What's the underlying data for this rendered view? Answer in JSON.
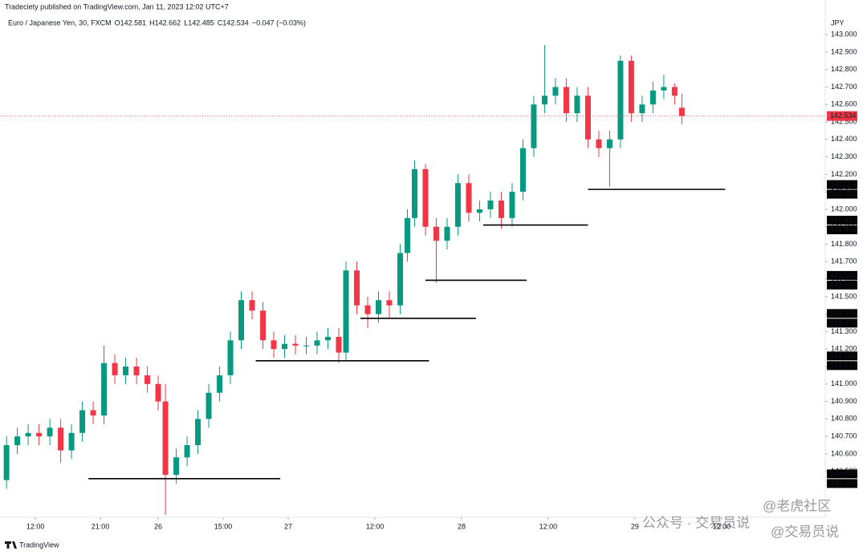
{
  "chart_data": {
    "type": "candlestick",
    "publisher": "Tradeciety published on TradingView.com, Jan 11, 2023 12:02 UTC+7",
    "symbol": "Euro / Japanese Yen, 30, FXCM",
    "legend_values": [
      {
        "key": "O",
        "val": "142.581"
      },
      {
        "key": "H",
        "val": "142.662"
      },
      {
        "key": "L",
        "val": "142.485"
      },
      {
        "key": "C",
        "val": "142.534"
      },
      {
        "key": "",
        "val": "−0.047 (−0.03%)"
      }
    ],
    "currency": "JPY",
    "brand": "TradingView",
    "watermark": [
      "公众号 · 交易员说",
      "@老虎社区",
      "@交易员说"
    ],
    "up_color": "#089981",
    "down_color": "#f23645",
    "grid": false,
    "xlim": [
      -1.8,
      226.7
    ],
    "ylim": [
      140.237,
      143.097
    ],
    "xticks": [
      {
        "value": 8,
        "label": "12:00"
      },
      {
        "value": 26,
        "label": "21:00"
      },
      {
        "value": 42,
        "label": "26"
      },
      {
        "value": 60,
        "label": "15:00"
      },
      {
        "value": 78,
        "label": "27"
      },
      {
        "value": 102,
        "label": "12:00"
      },
      {
        "value": 126,
        "label": "28"
      },
      {
        "value": 150,
        "label": "12:00"
      },
      {
        "value": 174,
        "label": "29"
      },
      {
        "value": 198,
        "label": "12:00"
      }
    ],
    "yticks": [
      {
        "value": 140.5,
        "label": "140.500"
      },
      {
        "value": 140.6,
        "label": "140.600"
      },
      {
        "value": 140.7,
        "label": "140.700"
      },
      {
        "value": 140.8,
        "label": "140.800"
      },
      {
        "value": 140.9,
        "label": "140.900"
      },
      {
        "value": 141.0,
        "label": "141.000"
      },
      {
        "value": 141.1,
        "label": "141.100"
      },
      {
        "value": 141.2,
        "label": "141.200"
      },
      {
        "value": 141.3,
        "label": "141.300"
      },
      {
        "value": 141.4,
        "label": "141.400"
      },
      {
        "value": 141.5,
        "label": "141.500"
      },
      {
        "value": 141.6,
        "label": "141.600"
      },
      {
        "value": 141.7,
        "label": "141.700"
      },
      {
        "value": 141.8,
        "label": "141.800"
      },
      {
        "value": 141.9,
        "label": "141.900"
      },
      {
        "value": 142.0,
        "label": "142.000"
      },
      {
        "value": 142.1,
        "label": "142.100"
      },
      {
        "value": 142.2,
        "label": "142.200"
      },
      {
        "value": 142.3,
        "label": "142.300"
      },
      {
        "value": 142.4,
        "label": "142.400"
      },
      {
        "value": 142.5,
        "label": "142.500"
      },
      {
        "value": 142.6,
        "label": "142.600"
      },
      {
        "value": 142.7,
        "label": "142.700"
      },
      {
        "value": 142.8,
        "label": "142.800"
      },
      {
        "value": 142.9,
        "label": "142.900"
      },
      {
        "value": 143.0,
        "label": "143.000"
      }
    ],
    "x": [
      0,
      3,
      6,
      9,
      12,
      15,
      18,
      21,
      24,
      27,
      30,
      33,
      36,
      39,
      42,
      44,
      47,
      50,
      53,
      56,
      59,
      62,
      65,
      68,
      71,
      74,
      77,
      80,
      83,
      86,
      89,
      92,
      94,
      97,
      100,
      103,
      106,
      109,
      111,
      113,
      116,
      119,
      122,
      125,
      128,
      131,
      134,
      137,
      140,
      143,
      146,
      149,
      152,
      155,
      158,
      161,
      164,
      167,
      170,
      173,
      176,
      179,
      182,
      185,
      187
    ],
    "open": [
      140.45,
      140.65,
      140.7,
      140.72,
      140.7,
      140.75,
      140.62,
      140.72,
      140.85,
      140.82,
      141.12,
      141.05,
      141.1,
      141.05,
      141.0,
      140.9,
      140.48,
      140.58,
      140.65,
      140.8,
      140.95,
      141.05,
      141.25,
      141.48,
      141.42,
      141.25,
      141.2,
      141.23,
      141.22,
      141.22,
      141.25,
      141.27,
      141.18,
      141.65,
      141.45,
      141.4,
      141.48,
      141.45,
      141.75,
      141.95,
      142.23,
      141.9,
      141.82,
      141.9,
      142.15,
      141.98,
      142.0,
      142.05,
      141.95,
      142.1,
      142.35,
      142.6,
      142.65,
      142.7,
      142.55,
      142.65,
      142.4,
      142.35,
      142.4,
      142.85,
      142.55,
      142.6,
      142.68,
      142.7,
      142.581
    ],
    "high": [
      140.7,
      140.75,
      140.77,
      140.77,
      140.8,
      140.8,
      140.77,
      140.9,
      140.9,
      141.22,
      141.17,
      141.15,
      141.15,
      141.1,
      141.05,
      141.0,
      140.63,
      140.7,
      140.85,
      141.0,
      141.1,
      141.3,
      141.53,
      141.53,
      141.47,
      141.3,
      141.28,
      141.28,
      141.27,
      141.3,
      141.32,
      141.32,
      141.7,
      141.7,
      141.5,
      141.53,
      141.53,
      141.8,
      142.0,
      142.28,
      142.26,
      141.95,
      141.95,
      142.2,
      142.2,
      142.05,
      142.1,
      142.1,
      142.15,
      142.4,
      142.65,
      142.94,
      142.75,
      142.75,
      142.7,
      142.7,
      142.45,
      142.45,
      142.88,
      142.88,
      142.65,
      142.73,
      142.77,
      142.72,
      142.662
    ],
    "low": [
      140.4,
      140.6,
      140.65,
      140.65,
      140.65,
      140.55,
      140.57,
      140.67,
      140.77,
      140.77,
      141.0,
      141.0,
      141.0,
      140.95,
      140.85,
      140.25,
      140.43,
      140.53,
      140.6,
      140.75,
      140.9,
      141.0,
      141.2,
      141.37,
      141.2,
      141.15,
      141.15,
      141.17,
      141.17,
      141.17,
      141.2,
      141.12,
      141.13,
      141.4,
      141.32,
      141.35,
      141.38,
      141.4,
      141.7,
      141.9,
      141.85,
      141.58,
      141.77,
      141.85,
      141.93,
      141.93,
      141.95,
      141.89,
      141.9,
      142.05,
      142.3,
      142.55,
      142.6,
      142.5,
      142.5,
      142.35,
      142.3,
      142.13,
      142.35,
      142.5,
      142.5,
      142.55,
      142.63,
      142.6,
      142.485
    ],
    "close": [
      140.65,
      140.7,
      140.72,
      140.7,
      140.75,
      140.62,
      140.72,
      140.85,
      140.82,
      141.12,
      141.05,
      141.1,
      141.05,
      141.0,
      140.9,
      140.48,
      140.58,
      140.65,
      140.8,
      140.95,
      141.05,
      141.25,
      141.48,
      141.42,
      141.25,
      141.2,
      141.23,
      141.22,
      141.22,
      141.25,
      141.27,
      141.18,
      141.65,
      141.45,
      141.4,
      141.48,
      141.45,
      141.75,
      141.95,
      142.23,
      141.9,
      141.82,
      141.9,
      142.15,
      141.98,
      142.0,
      142.05,
      141.95,
      142.1,
      142.35,
      142.6,
      142.65,
      142.7,
      142.55,
      142.65,
      142.4,
      142.35,
      142.4,
      142.85,
      142.55,
      142.6,
      142.68,
      142.7,
      142.65,
      142.534
    ],
    "levels": [
      {
        "value": 140.458,
        "x": [
          22.7,
          75.8
        ]
      },
      {
        "value": 141.133,
        "x": [
          69,
          117
        ]
      },
      {
        "value": 141.376,
        "x": [
          98,
          130
        ]
      },
      {
        "value": 141.594,
        "x": [
          116,
          144
        ]
      },
      {
        "value": 141.91,
        "label": "141.910",
        "x": [
          132,
          161
        ]
      },
      {
        "value": 142.114,
        "x": [
          161,
          199
        ]
      }
    ],
    "last_price": 142.534
  }
}
